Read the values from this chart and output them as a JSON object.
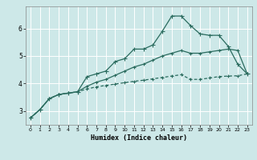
{
  "title": "",
  "xlabel": "Humidex (Indice chaleur)",
  "ylabel": "",
  "bg_color": "#cde8e8",
  "grid_color": "#ffffff",
  "line_color": "#2a6b5e",
  "xlim": [
    -0.5,
    23.5
  ],
  "ylim": [
    2.5,
    6.8
  ],
  "yticks": [
    3,
    4,
    5,
    6
  ],
  "xticks": [
    0,
    1,
    2,
    3,
    4,
    5,
    6,
    7,
    8,
    9,
    10,
    11,
    12,
    13,
    14,
    15,
    16,
    17,
    18,
    19,
    20,
    21,
    22,
    23
  ],
  "curve1_x": [
    0,
    1,
    2,
    3,
    4,
    5,
    6,
    7,
    8,
    9,
    10,
    11,
    12,
    13,
    14,
    15,
    16,
    17,
    18,
    19,
    20,
    21,
    22,
    23
  ],
  "curve1_y": [
    2.75,
    3.05,
    3.45,
    3.6,
    3.65,
    3.7,
    4.25,
    4.35,
    4.45,
    4.8,
    4.9,
    5.25,
    5.25,
    5.4,
    5.9,
    6.45,
    6.45,
    6.1,
    5.8,
    5.75,
    5.75,
    5.35,
    4.7,
    4.35
  ],
  "curve2_x": [
    0,
    1,
    2,
    3,
    4,
    5,
    6,
    7,
    8,
    9,
    10,
    11,
    12,
    13,
    14,
    15,
    16,
    17,
    18,
    19,
    20,
    21,
    22,
    23
  ],
  "curve2_y": [
    2.75,
    3.05,
    3.45,
    3.6,
    3.65,
    3.7,
    3.8,
    3.88,
    3.93,
    3.98,
    4.03,
    4.08,
    4.12,
    4.17,
    4.22,
    4.27,
    4.32,
    4.15,
    4.15,
    4.2,
    4.25,
    4.27,
    4.28,
    4.35
  ],
  "curve3_x": [
    0,
    1,
    2,
    3,
    4,
    5,
    6,
    7,
    8,
    9,
    10,
    11,
    12,
    13,
    14,
    15,
    16,
    17,
    18,
    19,
    20,
    21,
    22,
    23
  ],
  "curve3_y": [
    2.75,
    3.05,
    3.45,
    3.6,
    3.65,
    3.7,
    3.9,
    4.05,
    4.15,
    4.3,
    4.45,
    4.6,
    4.7,
    4.85,
    5.0,
    5.1,
    5.2,
    5.1,
    5.1,
    5.15,
    5.2,
    5.25,
    5.2,
    4.35
  ]
}
